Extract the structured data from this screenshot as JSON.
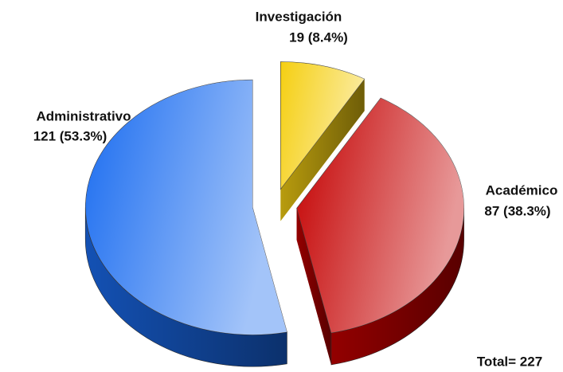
{
  "chart_data": {
    "type": "pie3d",
    "categories": [
      "Investigación",
      "Académico",
      "Administrativo"
    ],
    "values": [
      19,
      87,
      121
    ],
    "value_labels": [
      "19 (8.4%)",
      "87 (38.3%)",
      "121 (53.3%)"
    ],
    "colors": [
      "#f5cf12",
      "#c40000",
      "#1a6cf0"
    ],
    "annotation": "Total= 227"
  }
}
